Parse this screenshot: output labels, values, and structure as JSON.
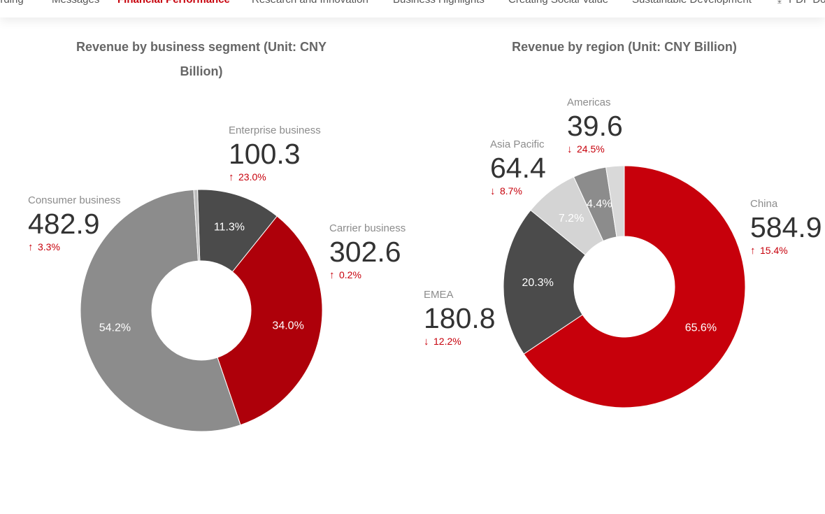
{
  "nav": {
    "items": [
      {
        "label": "ording",
        "active": false
      },
      {
        "label": "Messages",
        "active": false
      },
      {
        "label": "Financial Performance",
        "active": true
      },
      {
        "label": "Research and Innovation",
        "active": false
      },
      {
        "label": "Business Highlights",
        "active": false
      },
      {
        "label": "Creating Social Value",
        "active": false
      },
      {
        "label": "Sustainable Development",
        "active": false
      }
    ],
    "pdf_label": "PDF Do",
    "pdf_icon": "download-icon"
  },
  "colors": {
    "red": "#c7000b",
    "dark_red": "#ae000a",
    "dark_gray": "#4b4b4b",
    "mid_gray": "#8c8c8c",
    "light_gray": "#d4d4d4",
    "pale_gray": "#bdbdbd"
  },
  "chart_data": [
    {
      "type": "pie",
      "title": "Revenue by business segment (Unit: CNY Billion)",
      "unit": "CNY Billion",
      "slices": [
        {
          "name": "Enterprise business",
          "value": 100.3,
          "percent_label": "11.3%",
          "change": "23.0%",
          "direction": "up",
          "color": "#4b4b4b"
        },
        {
          "name": "Carrier business",
          "value": 302.6,
          "percent_label": "34.0%",
          "change": "0.2%",
          "direction": "up",
          "color": "#ae000a"
        },
        {
          "name": "Consumer business",
          "value": 482.9,
          "percent_label": "54.2%",
          "change": "3.3%",
          "direction": "up",
          "color": "#8c8c8c"
        },
        {
          "name": "",
          "value": 4.5,
          "percent_label": "",
          "change": "",
          "direction": "",
          "color": "#bdbdbd"
        }
      ]
    },
    {
      "type": "pie",
      "title": "Revenue by region (Unit: CNY Billion)",
      "unit": "CNY Billion",
      "slices": [
        {
          "name": "China",
          "value": 584.9,
          "percent_label": "65.6%",
          "change": "15.4%",
          "direction": "up",
          "color": "#c7000b"
        },
        {
          "name": "EMEA",
          "value": 180.8,
          "percent_label": "20.3%",
          "change": "12.2%",
          "direction": "down",
          "color": "#4b4b4b"
        },
        {
          "name": "Asia Pacific",
          "value": 64.4,
          "percent_label": "7.2%",
          "change": "8.7%",
          "direction": "down",
          "color": "#d4d4d4"
        },
        {
          "name": "Americas",
          "value": 39.6,
          "percent_label": "4.4%",
          "change": "24.5%",
          "direction": "down",
          "color": "#8c8c8c"
        },
        {
          "name": "",
          "value": 21.7,
          "percent_label": "",
          "change": "",
          "direction": "",
          "color": "#d9d9d9"
        }
      ]
    }
  ]
}
